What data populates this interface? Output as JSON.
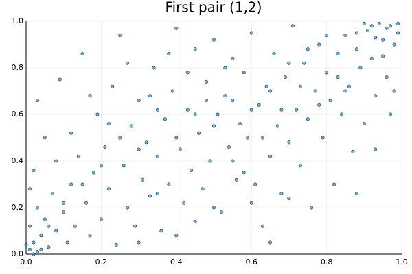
{
  "chart_data": {
    "type": "scatter",
    "title": "First pair (1,2)",
    "x": [
      0.01,
      0.02,
      0.01,
      0.03,
      0.04,
      0.02,
      0.03,
      0.05,
      0.06,
      0.07,
      0.08,
      0.05,
      0.03,
      0.09,
      0.1,
      0.11,
      0.12,
      0.13,
      0.14,
      0.15,
      0.16,
      0.17,
      0.18,
      0.19,
      0.2,
      0.21,
      0.22,
      0.23,
      0.24,
      0.25,
      0.26,
      0.27,
      0.28,
      0.29,
      0.3,
      0.31,
      0.32,
      0.33,
      0.34,
      0.35,
      0.36,
      0.37,
      0.38,
      0.39,
      0.4,
      0.41,
      0.42,
      0.43,
      0.44,
      0.45,
      0.46,
      0.47,
      0.48,
      0.49,
      0.5,
      0.51,
      0.52,
      0.53,
      0.54,
      0.55,
      0.56,
      0.57,
      0.58,
      0.59,
      0.6,
      0.61,
      0.62,
      0.63,
      0.64,
      0.65,
      0.66,
      0.67,
      0.68,
      0.69,
      0.7,
      0.71,
      0.72,
      0.73,
      0.74,
      0.75,
      0.76,
      0.77,
      0.78,
      0.79,
      0.8,
      0.81,
      0.82,
      0.83,
      0.84,
      0.85,
      0.86,
      0.87,
      0.88,
      0.89,
      0.9,
      0.91,
      0.92,
      0.93,
      0.94,
      0.95,
      0.96,
      0.97,
      0.98,
      0.99,
      0.97,
      0.95,
      0.92,
      0.9,
      0.88,
      0.99,
      0.96,
      0.93,
      0.85,
      0.8,
      0.75,
      0.7,
      0.65,
      0.6,
      0.55,
      0.5,
      0.45,
      0.4,
      0.35,
      0.3,
      0.25,
      0.2,
      0.15,
      0.1,
      0.06,
      0.04,
      0.02,
      0.0,
      0.01,
      0.08,
      0.12,
      0.17,
      0.22,
      0.27,
      0.33,
      0.38,
      0.43,
      0.48,
      0.53,
      0.58,
      0.63,
      0.68,
      0.73,
      0.78,
      0.83,
      0.88,
      0.93,
      0.98,
      0.7,
      0.65,
      0.6,
      0.55,
      0.5,
      0.45,
      0.4,
      0.35,
      0.3
    ],
    "values": [
      0.02,
      0.05,
      0.12,
      0.01,
      0.08,
      0.36,
      0.2,
      0.15,
      0.03,
      0.26,
      0.1,
      0.5,
      0.66,
      0.75,
      0.18,
      0.05,
      0.3,
      0.12,
      0.42,
      0.86,
      0.22,
      0.08,
      0.35,
      0.6,
      0.15,
      0.46,
      0.28,
      0.72,
      0.04,
      0.94,
      0.38,
      0.2,
      0.55,
      0.12,
      0.66,
      0.32,
      0.48,
      0.25,
      0.8,
      0.42,
      0.1,
      0.58,
      0.3,
      0.7,
      0.97,
      0.45,
      0.22,
      0.62,
      0.36,
      0.88,
      0.52,
      0.28,
      0.74,
      0.4,
      0.92,
      0.6,
      0.18,
      0.68,
      0.46,
      0.84,
      0.32,
      0.56,
      0.78,
      0.5,
      0.95,
      0.3,
      0.64,
      0.12,
      0.72,
      0.42,
      0.86,
      0.55,
      0.26,
      0.76,
      0.48,
      0.98,
      0.62,
      0.38,
      0.82,
      0.58,
      0.2,
      0.7,
      0.9,
      0.5,
      0.78,
      0.66,
      0.3,
      0.86,
      0.6,
      0.94,
      0.72,
      0.44,
      0.88,
      0.8,
      0.56,
      0.96,
      0.84,
      0.68,
      0.99,
      0.92,
      0.76,
      0.98,
      0.9,
      0.95,
      0.6,
      0.85,
      0.98,
      0.99,
      0.95,
      0.99,
      0.97,
      0.93,
      0.7,
      0.94,
      0.88,
      0.82,
      0.7,
      0.62,
      0.66,
      0.55,
      0.6,
      0.5,
      0.62,
      0.45,
      0.5,
      0.38,
      0.3,
      0.22,
      0.12,
      0.02,
      0.0,
      0.04,
      0.28,
      0.4,
      0.52,
      0.68,
      0.56,
      0.82,
      0.68,
      0.86,
      0.78,
      0.66,
      0.8,
      0.35,
      0.5,
      0.62,
      0.72,
      0.64,
      0.76,
      0.26,
      0.45,
      0.7,
      0.24,
      0.05,
      0.22,
      0.4,
      0.2,
      0.14,
      0.08,
      0.26,
      0.05
    ],
    "color": "#3a8fc4",
    "xlim": [
      0,
      1
    ],
    "ylim": [
      0,
      1
    ],
    "xticks": [
      {
        "value": 0,
        "label": "0.0"
      },
      0.2,
      0.4,
      0.6,
      0.8,
      {
        "value": 1,
        "label": "1.0"
      }
    ],
    "yticks": [
      {
        "value": 0,
        "label": "0.0"
      },
      0.2,
      0.4,
      0.6,
      0.8,
      {
        "value": 1,
        "label": "1.0"
      }
    ],
    "grid": true
  }
}
